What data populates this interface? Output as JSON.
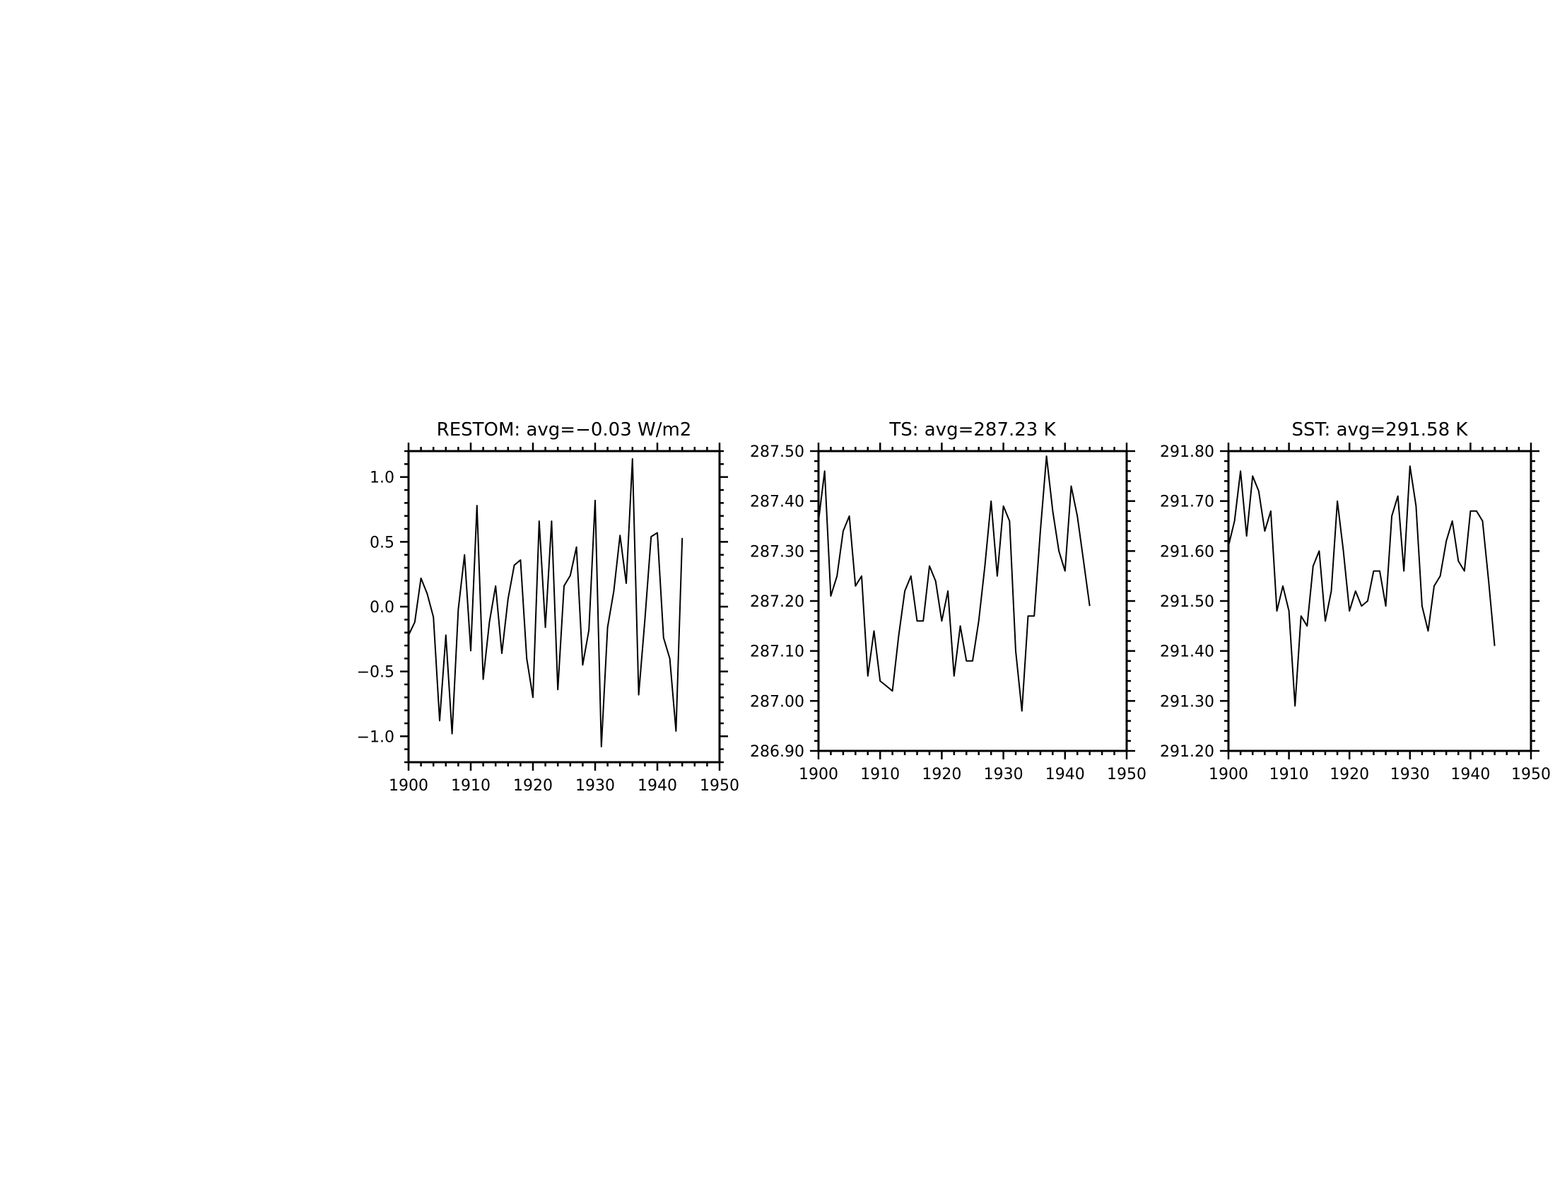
{
  "chart_data": [
    {
      "type": "line",
      "title": "RESTOM: avg=−0.03 W/m2",
      "xlabel": "",
      "ylabel": "",
      "xlim": [
        1900,
        1950
      ],
      "ylim": [
        -1.2,
        1.2
      ],
      "xticks": [
        1900,
        1910,
        1920,
        1930,
        1940,
        1950
      ],
      "xtick_labels": [
        "1900",
        "1910",
        "1920",
        "1930",
        "1940",
        "1950"
      ],
      "yticks": [
        1.0,
        0.5,
        0.0,
        -0.5,
        -1.0
      ],
      "ytick_labels": [
        "1.0",
        "0.5",
        "0.0",
        "−0.5",
        "−1.0"
      ],
      "grid": false,
      "x": [
        1900,
        1901,
        1902,
        1903,
        1904,
        1905,
        1906,
        1907,
        1908,
        1909,
        1910,
        1911,
        1912,
        1913,
        1914,
        1915,
        1916,
        1917,
        1918,
        1919,
        1920,
        1921,
        1922,
        1923,
        1924,
        1925,
        1926,
        1927,
        1928,
        1929,
        1930,
        1931,
        1932,
        1933,
        1934,
        1935,
        1936,
        1937,
        1938,
        1939,
        1940,
        1941,
        1942,
        1943,
        1944
      ],
      "values": [
        -0.22,
        -0.12,
        0.22,
        0.1,
        -0.08,
        -0.88,
        -0.22,
        -0.98,
        -0.02,
        0.4,
        -0.34,
        0.78,
        -0.56,
        -0.12,
        0.16,
        -0.36,
        0.06,
        0.32,
        0.36,
        -0.4,
        -0.7,
        0.66,
        -0.16,
        0.66,
        -0.64,
        0.16,
        0.24,
        0.46,
        -0.45,
        -0.18,
        0.82,
        -1.08,
        -0.16,
        0.12,
        0.55,
        0.18,
        1.14,
        -0.68,
        -0.1,
        0.54,
        0.57,
        -0.24,
        -0.4,
        -0.96,
        0.53
      ]
    },
    {
      "type": "line",
      "title": "TS: avg=287.23 K",
      "xlabel": "",
      "ylabel": "",
      "xlim": [
        1900,
        1950
      ],
      "ylim": [
        286.9,
        287.5
      ],
      "xticks": [
        1900,
        1910,
        1920,
        1930,
        1940,
        1950
      ],
      "xtick_labels": [
        "1900",
        "1910",
        "1920",
        "1930",
        "1940",
        "1950"
      ],
      "yticks": [
        287.5,
        287.4,
        287.3,
        287.2,
        287.1,
        287.0,
        286.9
      ],
      "ytick_labels": [
        "287.50",
        "287.40",
        "287.30",
        "287.20",
        "287.10",
        "287.00",
        "286.90"
      ],
      "grid": false,
      "x": [
        1900,
        1901,
        1902,
        1903,
        1904,
        1905,
        1906,
        1907,
        1908,
        1909,
        1910,
        1911,
        1912,
        1913,
        1914,
        1915,
        1916,
        1917,
        1918,
        1919,
        1920,
        1921,
        1922,
        1923,
        1924,
        1925,
        1926,
        1927,
        1928,
        1929,
        1930,
        1931,
        1932,
        1933,
        1934,
        1935,
        1936,
        1937,
        1938,
        1939,
        1940,
        1941,
        1942,
        1943,
        1944
      ],
      "values": [
        287.36,
        287.46,
        287.21,
        287.25,
        287.34,
        287.37,
        287.23,
        287.25,
        287.05,
        287.14,
        287.04,
        287.03,
        287.02,
        287.13,
        287.22,
        287.25,
        287.16,
        287.16,
        287.27,
        287.24,
        287.16,
        287.22,
        287.05,
        287.15,
        287.08,
        287.08,
        287.16,
        287.27,
        287.4,
        287.25,
        287.39,
        287.36,
        287.1,
        286.98,
        287.17,
        287.17,
        287.34,
        287.49,
        287.38,
        287.3,
        287.26,
        287.43,
        287.37,
        287.28,
        287.19
      ]
    },
    {
      "type": "line",
      "title": "SST: avg=291.58 K",
      "xlabel": "",
      "ylabel": "",
      "xlim": [
        1900,
        1950
      ],
      "ylim": [
        291.2,
        291.8
      ],
      "xticks": [
        1900,
        1910,
        1920,
        1930,
        1940,
        1950
      ],
      "xtick_labels": [
        "1900",
        "1910",
        "1920",
        "1930",
        "1940",
        "1950"
      ],
      "yticks": [
        291.8,
        291.7,
        291.6,
        291.5,
        291.4,
        291.3,
        291.2
      ],
      "ytick_labels": [
        "291.80",
        "291.70",
        "291.60",
        "291.50",
        "291.40",
        "291.30",
        "291.20"
      ],
      "grid": false,
      "x": [
        1900,
        1901,
        1902,
        1903,
        1904,
        1905,
        1906,
        1907,
        1908,
        1909,
        1910,
        1911,
        1912,
        1913,
        1914,
        1915,
        1916,
        1917,
        1918,
        1919,
        1920,
        1921,
        1922,
        1923,
        1924,
        1925,
        1926,
        1927,
        1928,
        1929,
        1930,
        1931,
        1932,
        1933,
        1934,
        1935,
        1936,
        1937,
        1938,
        1939,
        1940,
        1941,
        1942,
        1943,
        1944
      ],
      "values": [
        291.61,
        291.66,
        291.76,
        291.63,
        291.75,
        291.72,
        291.64,
        291.68,
        291.48,
        291.53,
        291.48,
        291.29,
        291.47,
        291.45,
        291.57,
        291.6,
        291.46,
        291.52,
        291.7,
        291.6,
        291.48,
        291.52,
        291.49,
        291.5,
        291.56,
        291.56,
        291.49,
        291.67,
        291.71,
        291.56,
        291.77,
        291.69,
        291.49,
        291.44,
        291.53,
        291.55,
        291.62,
        291.66,
        291.58,
        291.56,
        291.68,
        291.68,
        291.66,
        291.54,
        291.41
      ]
    }
  ]
}
